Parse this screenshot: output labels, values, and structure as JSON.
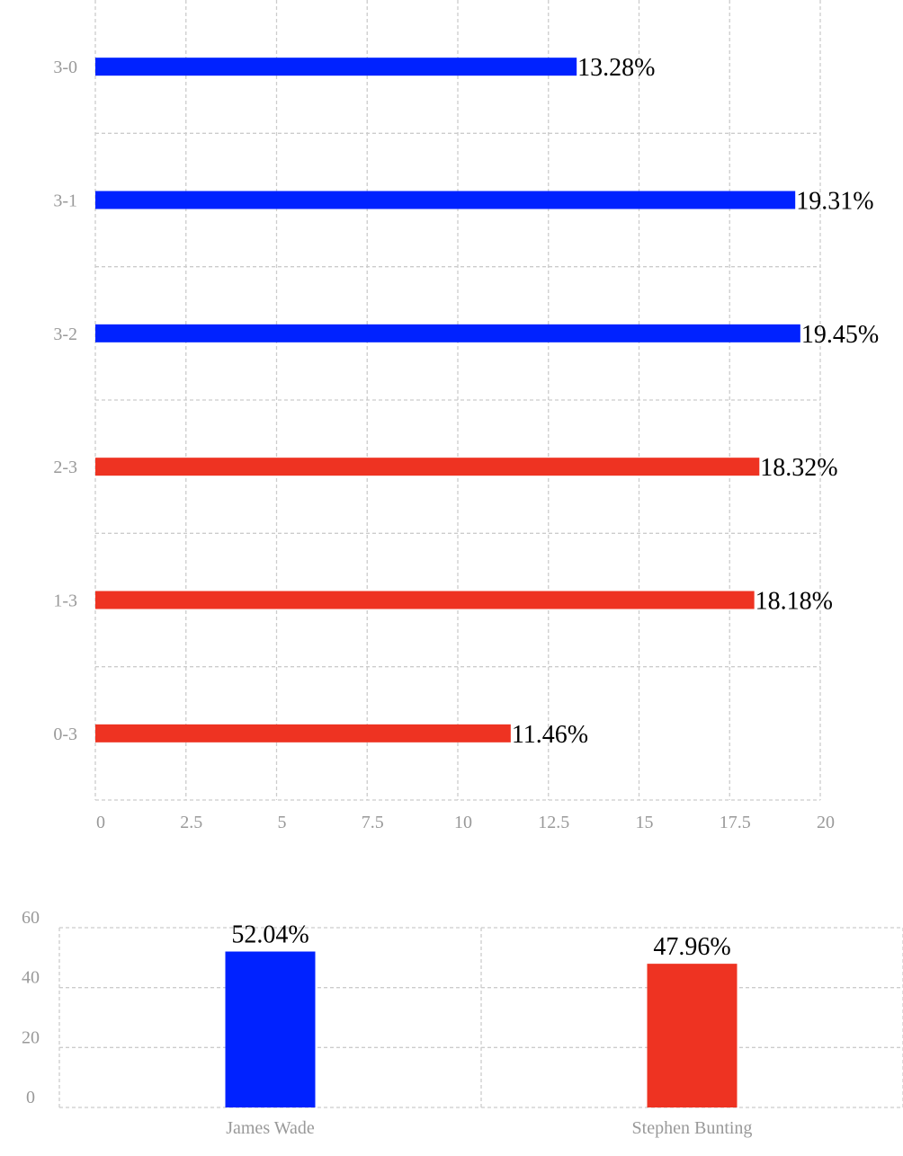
{
  "chart_data": [
    {
      "type": "bar",
      "orientation": "horizontal",
      "title": "",
      "xlabel": "",
      "ylabel": "",
      "categories": [
        "3-0",
        "3-1",
        "3-2",
        "2-3",
        "1-3",
        "0-3"
      ],
      "values": [
        13.28,
        19.31,
        19.45,
        18.32,
        18.18,
        11.46
      ],
      "value_labels": [
        "13.28%",
        "19.31%",
        "19.45%",
        "18.32%",
        "18.18%",
        "11.46%"
      ],
      "bar_colors": [
        "#0022ff",
        "#0022ff",
        "#0022ff",
        "#ee3322",
        "#ee3322",
        "#ee3322"
      ],
      "xlim": [
        0,
        20
      ],
      "x_ticks": [
        0,
        2.5,
        5,
        7.5,
        10,
        12.5,
        15,
        17.5,
        20
      ],
      "x_tick_labels": [
        "0",
        "2.5",
        "5",
        "7.5",
        "10",
        "12.5",
        "15",
        "17.5",
        "20"
      ],
      "grid": true,
      "legend": "none"
    },
    {
      "type": "bar",
      "orientation": "vertical",
      "title": "",
      "xlabel": "",
      "ylabel": "",
      "categories": [
        "James Wade",
        "Stephen Bunting"
      ],
      "values": [
        52.04,
        47.96
      ],
      "value_labels": [
        "52.04%",
        "47.96%"
      ],
      "bar_colors": [
        "#0022ff",
        "#ee3322"
      ],
      "ylim": [
        0,
        60
      ],
      "y_ticks": [
        0,
        20,
        40,
        60
      ],
      "y_tick_labels": [
        "0",
        "20",
        "40",
        "60"
      ],
      "grid": true,
      "legend": "none"
    }
  ]
}
